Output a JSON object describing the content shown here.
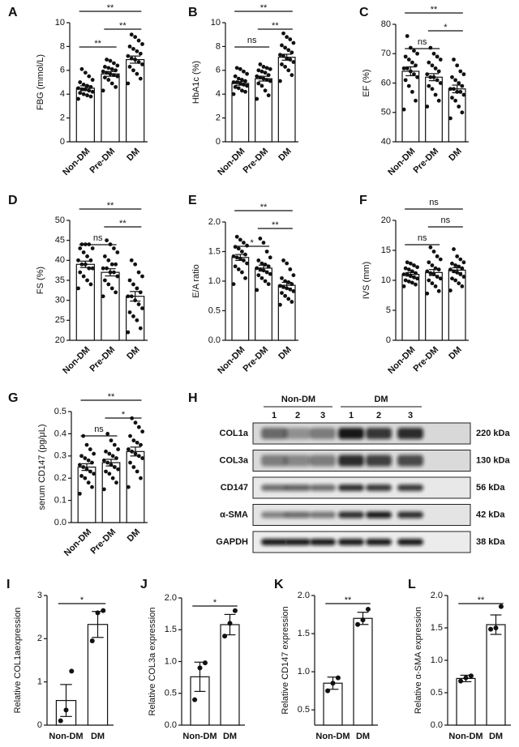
{
  "chart_data": [
    {
      "type": "bar",
      "panel": "A",
      "ylabel": "FBG (mmol/L)",
      "categories": [
        "Non-DM",
        "Pre-DM",
        "DM"
      ],
      "values": [
        4.5,
        5.7,
        6.9
      ],
      "errors": [
        0.2,
        0.2,
        0.3
      ],
      "points": [
        [
          3.6,
          3.8,
          3.9,
          4.0,
          4.1,
          4.2,
          4.3,
          4.4,
          4.4,
          4.5,
          4.6,
          4.7,
          4.8,
          5.0,
          5.2,
          5.5,
          5.8,
          6.1
        ],
        [
          4.3,
          4.6,
          4.9,
          5.2,
          5.4,
          5.5,
          5.6,
          5.7,
          5.8,
          5.9,
          6.0,
          6.1,
          6.2,
          6.3,
          6.4,
          6.6,
          6.8,
          6.9
        ],
        [
          4.9,
          5.3,
          5.7,
          6.0,
          6.3,
          6.5,
          6.7,
          6.9,
          7.0,
          7.2,
          7.4,
          7.6,
          7.8,
          8.0,
          8.2,
          8.5,
          8.8,
          9.0
        ]
      ],
      "ylim": [
        0,
        10
      ],
      "yticks": [
        0,
        2,
        4,
        6,
        8,
        10
      ],
      "brackets": [
        {
          "from": "Non-DM",
          "to": "Pre-DM",
          "label": "**"
        },
        {
          "from": "Pre-DM",
          "to": "DM",
          "label": "**"
        },
        {
          "from": "Non-DM",
          "to": "DM",
          "label": "**"
        }
      ]
    },
    {
      "type": "bar",
      "panel": "B",
      "ylabel": "HbA1c (%)",
      "categories": [
        "Non-DM",
        "Pre-DM",
        "DM"
      ],
      "values": [
        4.9,
        5.3,
        7.1
      ],
      "errors": [
        0.15,
        0.2,
        0.25
      ],
      "points": [
        [
          4.0,
          4.2,
          4.3,
          4.5,
          4.6,
          4.7,
          4.8,
          4.9,
          5.0,
          5.0,
          5.1,
          5.2,
          5.3,
          5.5,
          5.7,
          5.9,
          6.1,
          6.2
        ],
        [
          3.6,
          3.9,
          4.3,
          4.7,
          4.9,
          5.1,
          5.2,
          5.3,
          5.4,
          5.5,
          5.6,
          5.8,
          5.9,
          6.0,
          6.1,
          6.2,
          6.3,
          6.5
        ],
        [
          5.1,
          5.6,
          6.0,
          6.3,
          6.5,
          6.7,
          6.9,
          7.0,
          7.2,
          7.3,
          7.5,
          7.7,
          7.9,
          8.1,
          8.3,
          8.6,
          8.8,
          9.1
        ]
      ],
      "ylim": [
        0,
        10
      ],
      "yticks": [
        0,
        2,
        4,
        6,
        8,
        10
      ],
      "brackets": [
        {
          "from": "Non-DM",
          "to": "Pre-DM",
          "label": "ns"
        },
        {
          "from": "Pre-DM",
          "to": "DM",
          "label": "**"
        },
        {
          "from": "Non-DM",
          "to": "DM",
          "label": "**"
        }
      ]
    },
    {
      "type": "bar",
      "panel": "C",
      "ylabel": "EF (%)",
      "categories": [
        "Non-DM",
        "Pre-DM",
        "DM"
      ],
      "values": [
        64,
        62,
        58
      ],
      "errors": [
        1.5,
        1.2,
        1.3
      ],
      "points": [
        [
          51,
          54,
          57,
          59,
          61,
          62,
          63,
          64,
          65,
          65,
          66,
          67,
          68,
          69,
          70,
          71,
          72,
          76
        ],
        [
          52,
          54,
          56,
          58,
          59,
          60,
          61,
          62,
          62,
          63,
          64,
          65,
          66,
          67,
          68,
          69,
          70,
          72
        ],
        [
          48,
          50,
          52,
          54,
          55,
          56,
          57,
          57,
          58,
          58,
          59,
          60,
          61,
          62,
          63,
          64,
          66,
          68
        ]
      ],
      "ylim": [
        40,
        80
      ],
      "yticks": [
        40,
        50,
        60,
        70,
        80
      ],
      "brackets": [
        {
          "from": "Non-DM",
          "to": "Pre-DM",
          "label": "ns"
        },
        {
          "from": "Pre-DM",
          "to": "DM",
          "label": "*"
        },
        {
          "from": "Non-DM",
          "to": "DM",
          "label": "**"
        }
      ]
    },
    {
      "type": "bar",
      "panel": "D",
      "ylabel": "FS  (%)",
      "categories": [
        "Non-DM",
        "Pre-DM",
        "DM"
      ],
      "values": [
        39,
        37,
        31
      ],
      "errors": [
        0.8,
        0.9,
        1.2
      ],
      "points": [
        [
          33,
          34,
          35,
          36,
          37,
          38,
          38,
          39,
          39,
          40,
          40,
          41,
          42,
          43,
          43,
          44,
          44,
          44
        ],
        [
          31,
          32,
          33,
          34,
          35,
          36,
          37,
          37,
          38,
          38,
          39,
          39,
          40,
          41,
          42,
          43,
          44,
          45
        ],
        [
          22,
          23,
          25,
          26,
          27,
          28,
          29,
          30,
          31,
          31,
          32,
          33,
          34,
          35,
          36,
          37,
          39,
          40
        ]
      ],
      "ylim": [
        20,
        50
      ],
      "yticks": [
        20,
        25,
        30,
        35,
        40,
        45,
        50
      ],
      "brackets": [
        {
          "from": "Non-DM",
          "to": "Pre-DM",
          "label": "ns"
        },
        {
          "from": "Pre-DM",
          "to": "DM",
          "label": "**"
        },
        {
          "from": "Non-DM",
          "to": "DM",
          "label": "**"
        }
      ]
    },
    {
      "type": "bar",
      "panel": "E",
      "ylabel": "E/A ratio",
      "categories": [
        "Non-DM",
        "Pre-DM",
        "DM"
      ],
      "values": [
        1.4,
        1.22,
        0.93
      ],
      "errors": [
        0.05,
        0.05,
        0.05
      ],
      "points": [
        [
          0.95,
          1.05,
          1.15,
          1.2,
          1.25,
          1.3,
          1.35,
          1.38,
          1.4,
          1.42,
          1.45,
          1.5,
          1.55,
          1.58,
          1.6,
          1.65,
          1.7,
          1.75
        ],
        [
          0.85,
          0.95,
          1.0,
          1.05,
          1.1,
          1.12,
          1.15,
          1.18,
          1.2,
          1.22,
          1.25,
          1.28,
          1.3,
          1.35,
          1.4,
          1.5,
          1.65,
          1.72
        ],
        [
          0.6,
          0.65,
          0.7,
          0.75,
          0.8,
          0.83,
          0.86,
          0.88,
          0.9,
          0.92,
          0.95,
          0.98,
          1.0,
          1.05,
          1.1,
          1.2,
          1.3,
          1.35
        ]
      ],
      "ylim": [
        0,
        2
      ],
      "yticks": [
        {
          "value": 0,
          "label": "0.0"
        },
        0.5,
        {
          "value": 1,
          "label": "1.0"
        },
        1.5,
        {
          "value": 2,
          "label": "2.0"
        }
      ],
      "brackets": [
        {
          "from": "Non-DM",
          "to": "Pre-DM",
          "label": "*"
        },
        {
          "from": "Pre-DM",
          "to": "DM",
          "label": "**"
        },
        {
          "from": "Non-DM",
          "to": "DM",
          "label": "**"
        }
      ]
    },
    {
      "type": "bar",
      "panel": "F",
      "ylabel": "IVS (mm)",
      "categories": [
        "Non-DM",
        "Pre-DM",
        "DM"
      ],
      "values": [
        11,
        11.3,
        11.7
      ],
      "errors": [
        0.3,
        0.5,
        0.4
      ],
      "points": [
        [
          9,
          9.3,
          9.6,
          9.8,
          10,
          10.3,
          10.5,
          10.7,
          11,
          11,
          11.2,
          11.5,
          11.8,
          12,
          12.2,
          12.5,
          12.8,
          13
        ],
        [
          7.8,
          8.2,
          9,
          9.5,
          10,
          10.3,
          10.6,
          11,
          11.2,
          11.5,
          11.8,
          12,
          12.5,
          13,
          13.5,
          14,
          14.8,
          15.5
        ],
        [
          8.3,
          9,
          9.5,
          10,
          10.3,
          10.6,
          11,
          11.3,
          11.5,
          11.8,
          12,
          12.3,
          12.5,
          12.8,
          13,
          13.5,
          14,
          15.2
        ]
      ],
      "ylim": [
        0,
        20
      ],
      "yticks": [
        0,
        5,
        10,
        15,
        20
      ],
      "brackets": [
        {
          "from": "Non-DM",
          "to": "Pre-DM",
          "label": "ns"
        },
        {
          "from": "Pre-DM",
          "to": "DM",
          "label": "ns"
        },
        {
          "from": "Non-DM",
          "to": "DM",
          "label": "ns"
        }
      ]
    },
    {
      "type": "bar",
      "panel": "G",
      "ylabel": "serum CD147  (pg/μL)",
      "categories": [
        "Non-DM",
        "Pre-DM",
        "DM"
      ],
      "values": [
        0.25,
        0.27,
        0.32
      ],
      "errors": [
        0.015,
        0.015,
        0.02
      ],
      "points": [
        [
          0.13,
          0.16,
          0.18,
          0.2,
          0.21,
          0.22,
          0.23,
          0.24,
          0.25,
          0.26,
          0.27,
          0.28,
          0.29,
          0.3,
          0.31,
          0.33,
          0.35,
          0.39
        ],
        [
          0.15,
          0.18,
          0.2,
          0.22,
          0.23,
          0.24,
          0.25,
          0.26,
          0.27,
          0.28,
          0.29,
          0.3,
          0.31,
          0.32,
          0.33,
          0.35,
          0.37,
          0.4
        ],
        [
          0.16,
          0.2,
          0.23,
          0.25,
          0.27,
          0.29,
          0.3,
          0.31,
          0.32,
          0.33,
          0.35,
          0.36,
          0.37,
          0.39,
          0.41,
          0.43,
          0.45,
          0.47
        ]
      ],
      "ylim": [
        0,
        0.5
      ],
      "yticks": [
        {
          "value": 0,
          "label": "0.0"
        },
        0.1,
        0.2,
        0.3,
        0.4,
        0.5
      ],
      "brackets": [
        {
          "from": "Non-DM",
          "to": "Pre-DM",
          "label": "ns"
        },
        {
          "from": "Pre-DM",
          "to": "DM",
          "label": "*"
        },
        {
          "from": "Non-DM",
          "to": "DM",
          "label": "**"
        }
      ]
    },
    {
      "type": "blot",
      "panel": "H",
      "groups": [
        "Non-DM",
        "DM"
      ],
      "lanes": [
        "1",
        "2",
        "3",
        "1",
        "2",
        "3"
      ],
      "rows": [
        {
          "protein": "COL1a",
          "size": "220 kDa"
        },
        {
          "protein": "COL3a",
          "size": "130 kDa"
        },
        {
          "protein": "CD147",
          "size": "56 kDa"
        },
        {
          "protein": "α-SMA",
          "size": "42 kDa"
        },
        {
          "protein": "GAPDH",
          "size": "38 kDa"
        }
      ]
    },
    {
      "type": "bar",
      "panel": "I",
      "ylabel": "Relative COL1aexpression",
      "categories": [
        "Non-DM",
        "DM"
      ],
      "values": [
        0.57,
        2.33
      ],
      "errors": [
        0.37,
        0.3
      ],
      "points": [
        [
          0.1,
          0.35,
          1.25
        ],
        [
          1.95,
          2.6,
          2.65
        ]
      ],
      "ylim": [
        0,
        3
      ],
      "yticks": [
        0,
        1,
        2,
        3
      ],
      "brackets": [
        {
          "from": "Non-DM",
          "to": "DM",
          "label": "*"
        }
      ]
    },
    {
      "type": "bar",
      "panel": "J",
      "ylabel": "Relative COL3a expression",
      "categories": [
        "Non-DM",
        "DM"
      ],
      "values": [
        0.76,
        1.58
      ],
      "errors": [
        0.23,
        0.16
      ],
      "points": [
        [
          0.4,
          0.9,
          0.98
        ],
        [
          1.4,
          1.6,
          1.8
        ]
      ],
      "ylim": [
        0,
        2
      ],
      "yticks": [
        {
          "value": 0,
          "label": "0.0"
        },
        0.5,
        {
          "value": 1,
          "label": "1.0"
        },
        1.5,
        {
          "value": 2,
          "label": "2.0"
        }
      ],
      "brackets": [
        {
          "from": "Non-DM",
          "to": "DM",
          "label": "*"
        }
      ]
    },
    {
      "type": "bar",
      "panel": "K",
      "ylabel": "Relative CD147 expression",
      "categories": [
        "Non-DM",
        "DM"
      ],
      "values": [
        0.85,
        1.7
      ],
      "errors": [
        0.08,
        0.08
      ],
      "points": [
        [
          0.75,
          0.85,
          0.92
        ],
        [
          1.62,
          1.68,
          1.82
        ]
      ],
      "ylim": [
        0.3,
        2
      ],
      "yticks": [
        0.5,
        {
          "value": 1,
          "label": "1.0"
        },
        1.5,
        {
          "value": 2,
          "label": "2.0"
        }
      ],
      "brackets": [
        {
          "from": "Non-DM",
          "to": "DM",
          "label": "**"
        }
      ]
    },
    {
      "type": "bar",
      "panel": "L",
      "ylabel": "Relative α-SMA expression",
      "categories": [
        "Non-DM",
        "DM"
      ],
      "values": [
        0.72,
        1.55
      ],
      "errors": [
        0.05,
        0.15
      ],
      "points": [
        [
          0.68,
          0.73,
          0.76
        ],
        [
          1.48,
          1.5,
          1.83
        ]
      ],
      "ylim": [
        0,
        2
      ],
      "yticks": [
        {
          "value": 0,
          "label": "0.0"
        },
        0.5,
        {
          "value": 1,
          "label": "1.0"
        },
        1.5,
        {
          "value": 2,
          "label": "2.0"
        }
      ],
      "brackets": [
        {
          "from": "Non-DM",
          "to": "DM",
          "label": "**"
        }
      ]
    }
  ]
}
